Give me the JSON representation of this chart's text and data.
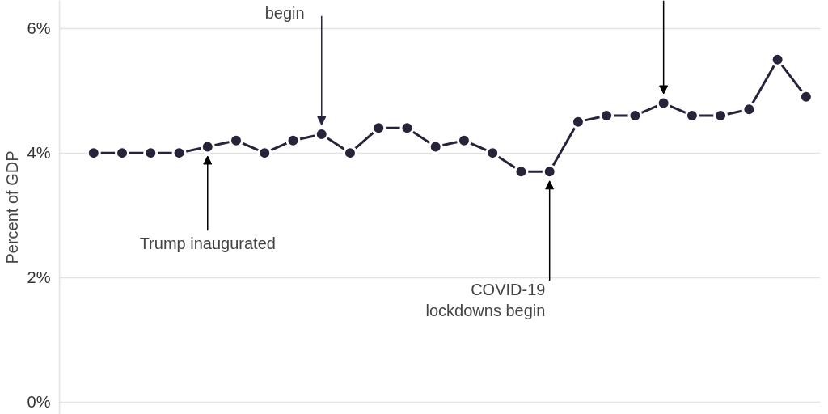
{
  "chart_data": {
    "type": "line",
    "ylabel": "Percent of GDP",
    "categories": [
      null,
      null,
      null,
      null,
      null,
      null,
      null,
      null,
      null,
      null,
      null,
      null,
      null,
      null,
      null,
      null,
      null,
      null,
      null,
      null,
      null,
      null,
      null,
      null,
      null,
      null
    ],
    "series": [
      {
        "color": "#27233a",
        "values": [
          4.0,
          4.0,
          4.0,
          4.0,
          4.1,
          4.2,
          4.0,
          4.2,
          4.3,
          4.0,
          4.4,
          4.4,
          4.1,
          4.2,
          4.0,
          3.7,
          3.7,
          4.5,
          4.6,
          4.6,
          4.8,
          4.6,
          4.6,
          4.7,
          5.5,
          4.9
        ]
      }
    ],
    "ylim": [
      -0.2,
      6.45
    ],
    "yticks": [
      {
        "value": 0,
        "label": "0%"
      },
      {
        "value": 2,
        "label": "2%"
      },
      {
        "value": 4,
        "label": "4%"
      },
      {
        "value": 6,
        "label": "6%"
      }
    ],
    "grid": "y",
    "marker": "circle",
    "line_style": "solid",
    "annotations": [
      "begin",
      "Trump inaugurated",
      "COVID-19\nlockdowns begin"
    ]
  }
}
